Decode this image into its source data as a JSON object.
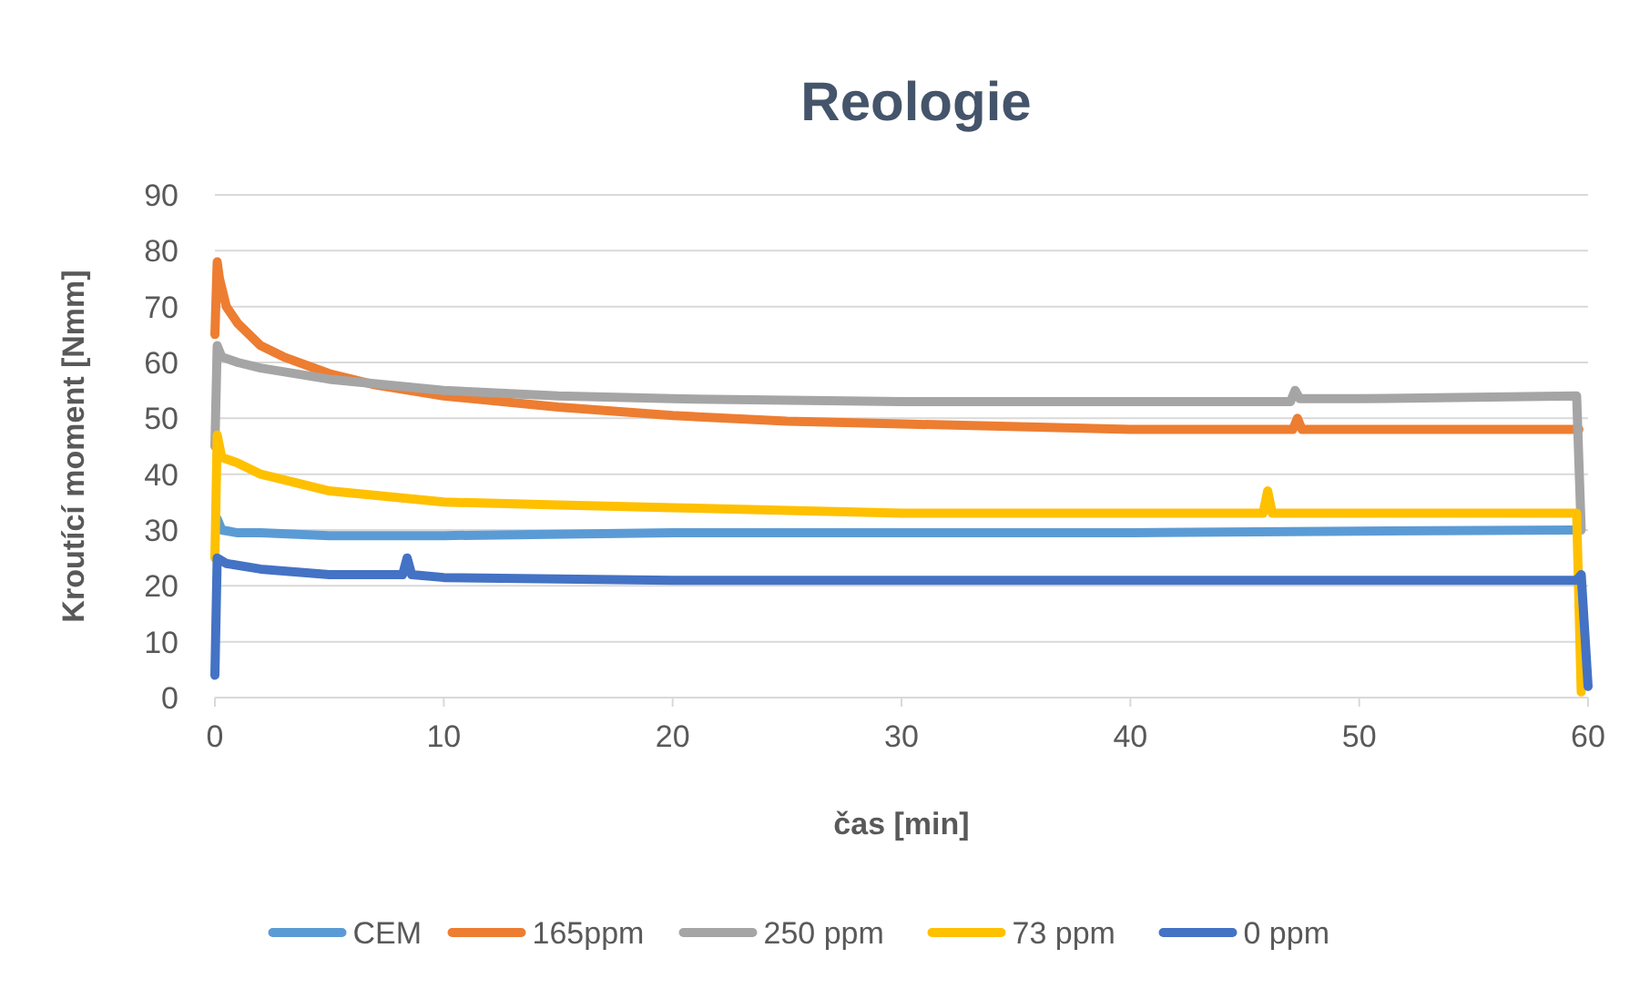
{
  "chart_data": {
    "type": "line",
    "title": "Reologie",
    "xlabel": "čas [min]",
    "ylabel": "Kroutící moment [Nmm]",
    "xlim": [
      0,
      60
    ],
    "xticks": [
      0,
      10,
      20,
      30,
      40,
      50,
      60
    ],
    "ylim": [
      0,
      90
    ],
    "yticks": [
      0,
      10,
      20,
      30,
      40,
      50,
      60,
      70,
      80,
      90
    ],
    "grid": "y",
    "legend": "bottom",
    "marker": "none",
    "line_style": "solid",
    "series": [
      {
        "name": "CEM",
        "color": "#5b9bd5",
        "x": [
          0.1,
          0.3,
          1,
          2,
          5,
          10,
          20,
          30,
          40,
          50,
          59.3
        ],
        "values": [
          32,
          30,
          29.5,
          29.5,
          29,
          29,
          29.5,
          29.5,
          29.5,
          29.8,
          30
        ]
      },
      {
        "name": "165ppm",
        "color": "#ed7d31",
        "x": [
          0,
          0.1,
          0.2,
          0.5,
          1,
          2,
          3,
          5,
          7,
          10,
          15,
          20,
          25,
          30,
          40,
          47.1,
          47.3,
          47.5,
          50,
          59.6
        ],
        "values": [
          65,
          78,
          75,
          70,
          67,
          63,
          61,
          58,
          56,
          54,
          52,
          50.5,
          49.5,
          49,
          48,
          48,
          50,
          48,
          48,
          48
        ]
      },
      {
        "name": "250 ppm",
        "color": "#a5a5a5",
        "x": [
          0,
          0.1,
          0.3,
          1,
          2,
          5,
          10,
          15,
          20,
          30,
          40,
          47.0,
          47.2,
          47.4,
          50,
          59.5,
          59.7
        ],
        "values": [
          45,
          63,
          61,
          60,
          59,
          57,
          55,
          54,
          53.5,
          53,
          53,
          53,
          55,
          53.5,
          53.5,
          54,
          30
        ]
      },
      {
        "name": "73 ppm",
        "color": "#ffc000",
        "x": [
          0,
          0.1,
          0.3,
          1,
          2,
          5,
          10,
          15,
          20,
          30,
          40,
          45.8,
          46,
          46.2,
          50,
          59.5,
          59.7
        ],
        "values": [
          25,
          47,
          43,
          42,
          40,
          37,
          35,
          34.5,
          34,
          33,
          33,
          33,
          37,
          33,
          33,
          33,
          1
        ]
      },
      {
        "name": "0 ppm",
        "color": "#4472c4",
        "x": [
          0,
          0.1,
          0.5,
          2,
          5,
          8.2,
          8.4,
          8.6,
          10,
          20,
          30,
          40,
          50,
          59.5,
          59.7,
          60
        ],
        "values": [
          4,
          25,
          24,
          23,
          22,
          22,
          25,
          22,
          21.5,
          21,
          21,
          21,
          21,
          21,
          22,
          2
        ]
      }
    ]
  }
}
